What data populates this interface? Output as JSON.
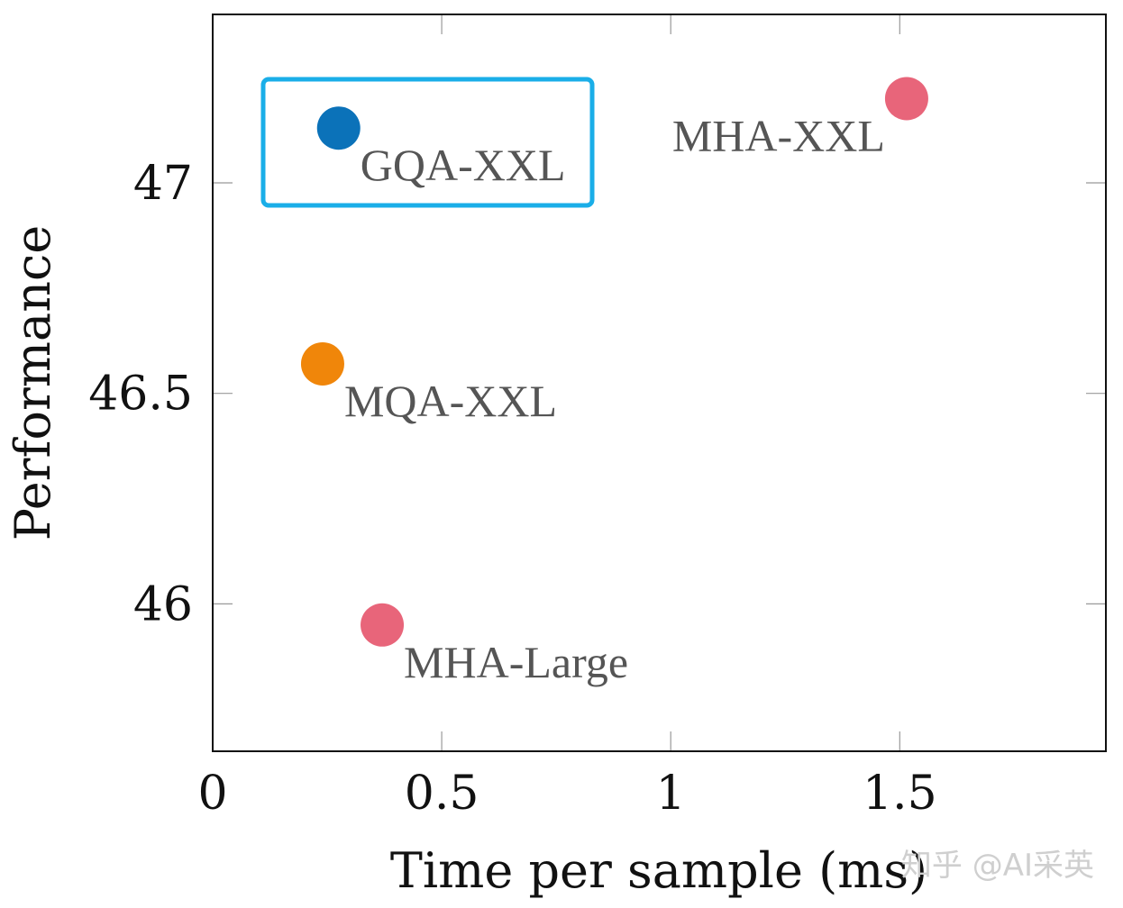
{
  "chart_data": {
    "type": "scatter",
    "xlabel": "Time per sample (ms)",
    "ylabel": "Performance",
    "xlim": [
      0,
      1.95
    ],
    "ylim": [
      45.65,
      47.4
    ],
    "xticks": [
      0,
      0.5,
      1,
      1.5
    ],
    "yticks": [
      46,
      46.5,
      47
    ],
    "xtick_labels": [
      "0",
      "0.5",
      "1",
      "1.5"
    ],
    "ytick_labels": [
      "46",
      "46.5",
      "47"
    ],
    "grid": false,
    "points": [
      {
        "label": "GQA-XXL",
        "x": 0.275,
        "y": 47.13,
        "color": "#0b72b9",
        "highlight": true
      },
      {
        "label": "MHA-XXL",
        "x": 1.515,
        "y": 47.2,
        "color": "#e8657a",
        "highlight": false
      },
      {
        "label": "MQA-XXL",
        "x": 0.24,
        "y": 46.57,
        "color": "#f0860a",
        "highlight": false
      },
      {
        "label": "MHA-Large",
        "x": 0.37,
        "y": 45.95,
        "color": "#e8657a",
        "highlight": false
      }
    ],
    "highlight_color": "#1aaee8"
  },
  "watermark": "知乎 @AI采英"
}
